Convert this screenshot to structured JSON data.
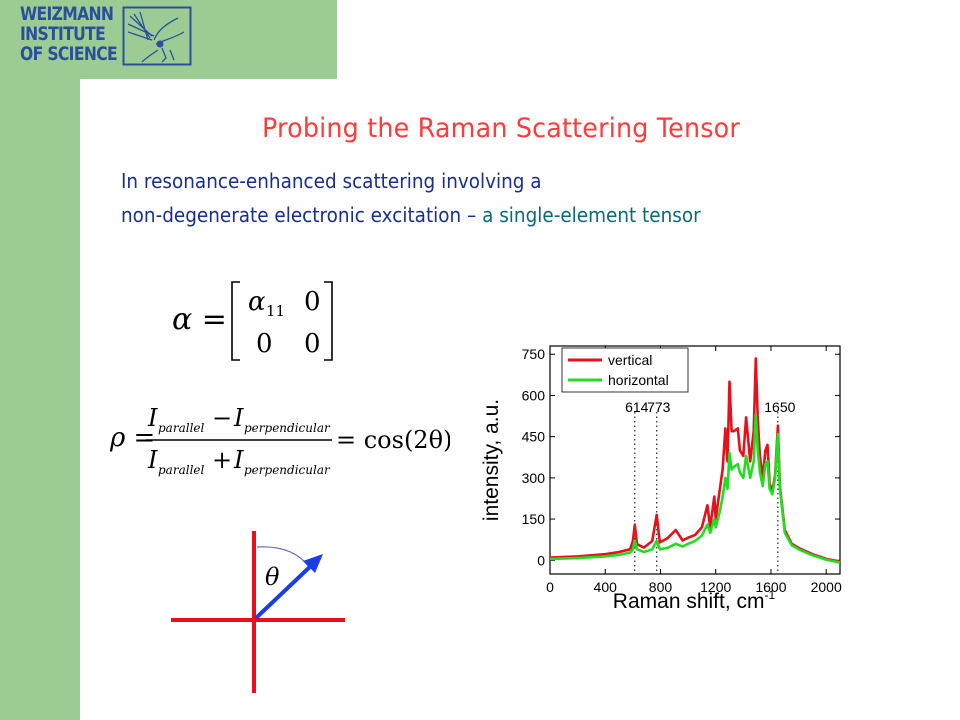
{
  "logo": {
    "lines": [
      "WEIZMANN",
      "INSTITUTE",
      "OF SCIENCE"
    ]
  },
  "slide": {
    "title": "Probing the Raman Scattering Tensor",
    "line1": "In resonance-enhanced scattering involving a",
    "line2_main": "non-degenerate electronic excitation – ",
    "line2_highlight": "a single-element tensor"
  },
  "formula_tensor": {
    "lhs": "α =",
    "a11": "α",
    "a11_sub": "11",
    "zero": "0"
  },
  "formula_rho": {
    "lhs": "ρ =",
    "I": "I",
    "sub_parallel": "parallel",
    "sub_perpendicular": "perpendicular",
    "minus": "−",
    "plus": "+",
    "rhs": "= cos(2θ)"
  },
  "diagram": {
    "theta": "θ"
  },
  "colors": {
    "green_bg": "#9ccc94",
    "logo_blue": "#2c4f9c",
    "title_red": "#ff3b3b",
    "text_blue": "#1a2f8a",
    "highlight_teal": "#0b6b74",
    "vertical_series": "#e8101a",
    "horizontal_series": "#22dd22",
    "arrow_blue": "#1a3ee6",
    "axis_red": "#e8101a"
  },
  "chart_data": {
    "type": "line",
    "xlabel": "Raman shift, cm",
    "xlabel_sup": "-1",
    "ylabel": "intensity, a.u.",
    "xlim": [
      0,
      2100
    ],
    "ylim": [
      -50,
      780
    ],
    "xticks": [
      0,
      400,
      800,
      1200,
      1600,
      2000
    ],
    "yticks": [
      0,
      150,
      300,
      450,
      600,
      750
    ],
    "legend_position": "top-left",
    "annotations": [
      {
        "label": "614",
        "x": 614
      },
      {
        "label": "773",
        "x": 773
      },
      {
        "label": "1650",
        "x": 1650
      }
    ],
    "series": [
      {
        "name": "vertical",
        "color": "#e8101a",
        "points": [
          [
            0,
            10
          ],
          [
            200,
            14
          ],
          [
            400,
            22
          ],
          [
            500,
            30
          ],
          [
            580,
            40
          ],
          [
            600,
            70
          ],
          [
            614,
            130
          ],
          [
            630,
            58
          ],
          [
            680,
            46
          ],
          [
            740,
            70
          ],
          [
            773,
            165
          ],
          [
            795,
            65
          ],
          [
            850,
            80
          ],
          [
            910,
            110
          ],
          [
            960,
            72
          ],
          [
            1000,
            82
          ],
          [
            1050,
            92
          ],
          [
            1100,
            120
          ],
          [
            1140,
            200
          ],
          [
            1160,
            120
          ],
          [
            1190,
            232
          ],
          [
            1200,
            150
          ],
          [
            1230,
            260
          ],
          [
            1250,
            330
          ],
          [
            1270,
            480
          ],
          [
            1285,
            360
          ],
          [
            1300,
            650
          ],
          [
            1315,
            470
          ],
          [
            1330,
            470
          ],
          [
            1360,
            480
          ],
          [
            1375,
            400
          ],
          [
            1400,
            380
          ],
          [
            1420,
            520
          ],
          [
            1450,
            360
          ],
          [
            1475,
            470
          ],
          [
            1490,
            735
          ],
          [
            1505,
            510
          ],
          [
            1520,
            380
          ],
          [
            1540,
            300
          ],
          [
            1560,
            400
          ],
          [
            1575,
            420
          ],
          [
            1590,
            280
          ],
          [
            1610,
            250
          ],
          [
            1630,
            310
          ],
          [
            1650,
            490
          ],
          [
            1665,
            270
          ],
          [
            1700,
            110
          ],
          [
            1750,
            60
          ],
          [
            1800,
            45
          ],
          [
            1900,
            22
          ],
          [
            2000,
            5
          ],
          [
            2100,
            -5
          ]
        ]
      },
      {
        "name": "horizontal",
        "color": "#22dd22",
        "points": [
          [
            0,
            5
          ],
          [
            200,
            8
          ],
          [
            400,
            14
          ],
          [
            500,
            20
          ],
          [
            580,
            28
          ],
          [
            600,
            40
          ],
          [
            614,
            72
          ],
          [
            630,
            40
          ],
          [
            680,
            30
          ],
          [
            740,
            40
          ],
          [
            773,
            70
          ],
          [
            795,
            40
          ],
          [
            850,
            45
          ],
          [
            910,
            60
          ],
          [
            960,
            50
          ],
          [
            1000,
            60
          ],
          [
            1050,
            70
          ],
          [
            1100,
            90
          ],
          [
            1140,
            130
          ],
          [
            1160,
            100
          ],
          [
            1190,
            150
          ],
          [
            1200,
            120
          ],
          [
            1230,
            180
          ],
          [
            1250,
            230
          ],
          [
            1270,
            300
          ],
          [
            1285,
            260
          ],
          [
            1300,
            390
          ],
          [
            1315,
            330
          ],
          [
            1330,
            340
          ],
          [
            1360,
            350
          ],
          [
            1375,
            320
          ],
          [
            1400,
            300
          ],
          [
            1420,
            380
          ],
          [
            1450,
            300
          ],
          [
            1475,
            360
          ],
          [
            1490,
            530
          ],
          [
            1505,
            400
          ],
          [
            1520,
            320
          ],
          [
            1540,
            270
          ],
          [
            1560,
            350
          ],
          [
            1575,
            360
          ],
          [
            1590,
            260
          ],
          [
            1610,
            240
          ],
          [
            1630,
            300
          ],
          [
            1650,
            460
          ],
          [
            1665,
            260
          ],
          [
            1700,
            100
          ],
          [
            1750,
            55
          ],
          [
            1800,
            40
          ],
          [
            1900,
            18
          ],
          [
            2000,
            2
          ],
          [
            2100,
            -8
          ]
        ]
      }
    ]
  }
}
